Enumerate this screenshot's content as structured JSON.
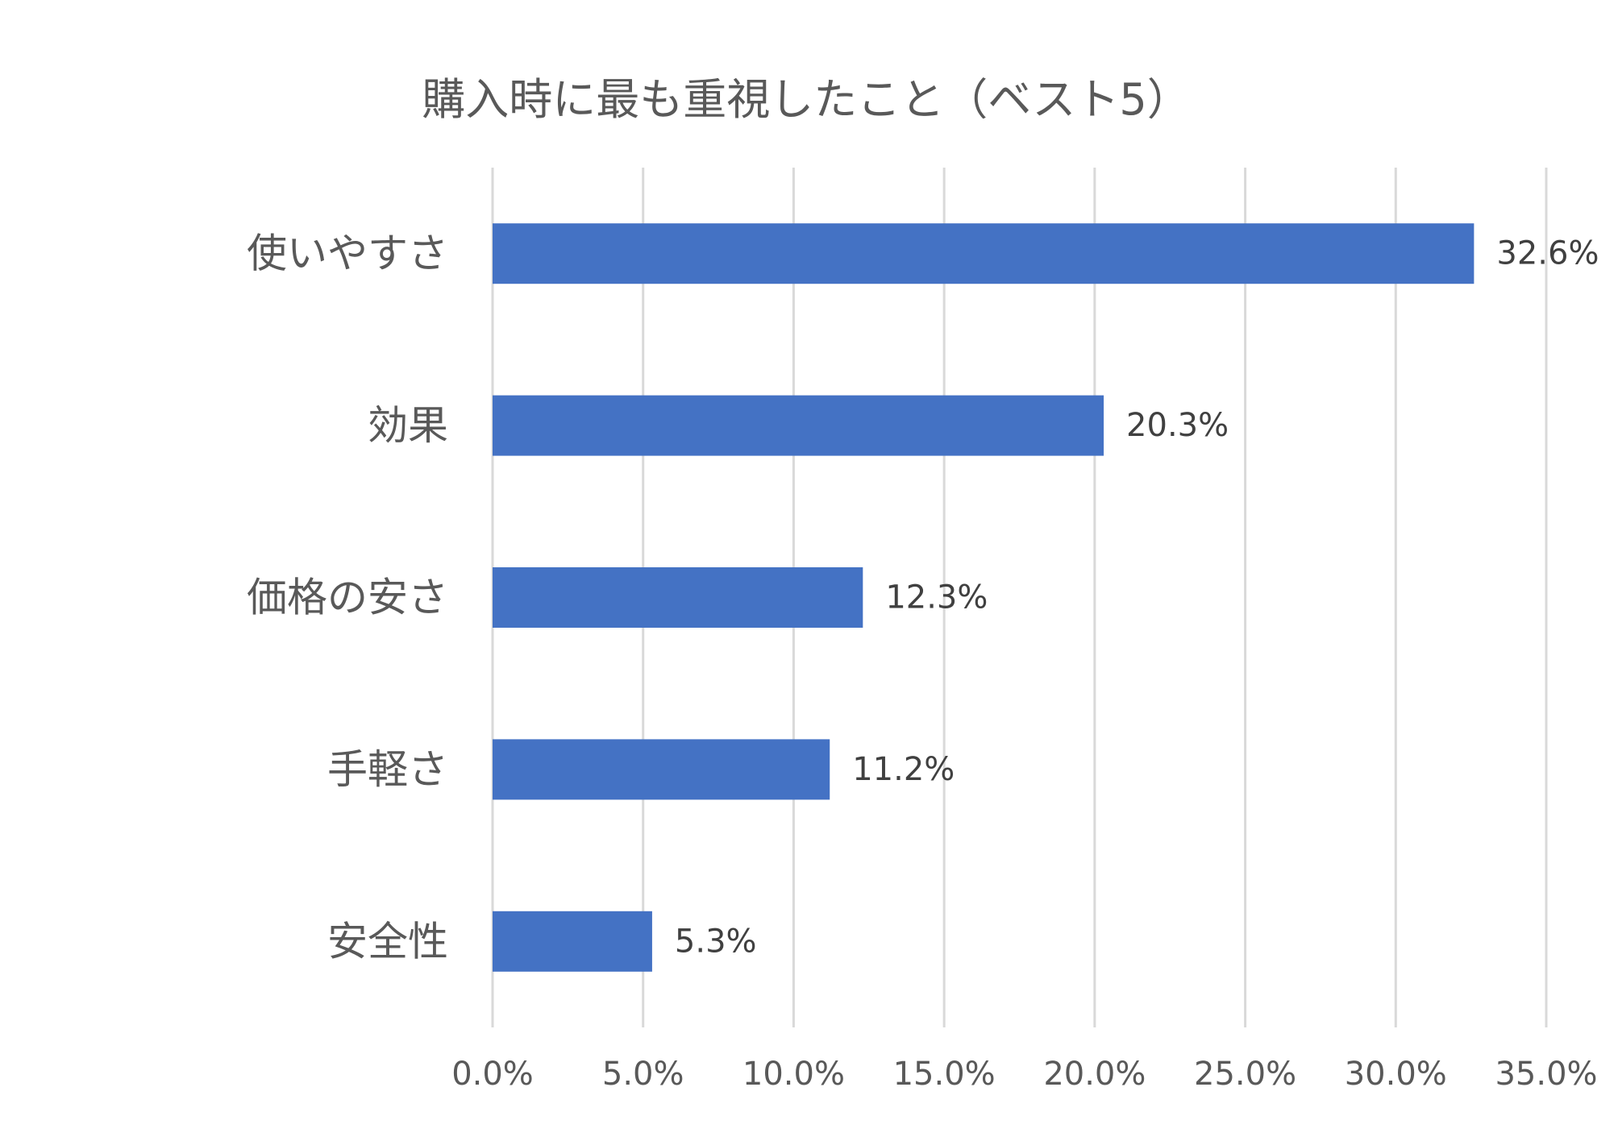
{
  "chart_data": {
    "type": "bar",
    "orientation": "horizontal",
    "title": "購入時に最も重視したこと（ベスト5）",
    "categories": [
      "使いやすさ",
      "効果",
      "価格の安さ",
      "手軽さ",
      "安全性"
    ],
    "values": [
      32.6,
      20.3,
      12.3,
      11.2,
      5.3
    ],
    "data_labels": [
      "32.6%",
      "20.3%",
      "12.3%",
      "11.2%",
      "5.3%"
    ],
    "xlim": [
      0,
      35
    ],
    "x_ticks": [
      0,
      5,
      10,
      15,
      20,
      25,
      30,
      35
    ],
    "x_tick_labels": [
      "0.0%",
      "5.0%",
      "10.0%",
      "15.0%",
      "20.0%",
      "25.0%",
      "30.0%",
      "35.0%"
    ],
    "xlabel": "",
    "ylabel": "",
    "grid": true,
    "legend": "none",
    "bar_color": "#4472c4",
    "grid_color": "#d9d9d9",
    "text_color": "#595959"
  }
}
